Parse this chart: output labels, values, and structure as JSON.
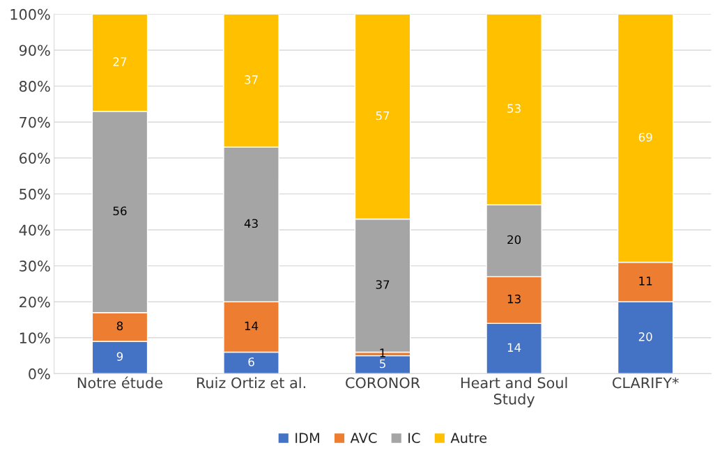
{
  "chart_data": {
    "type": "bar",
    "stacked": true,
    "categories": [
      "Notre étude",
      "Ruiz Ortiz et al.",
      "CORONOR",
      "Heart and Soul\nStudy",
      "CLARIFY*"
    ],
    "series": [
      {
        "name": "IDM",
        "color": "#4472c4",
        "values": [
          9,
          6,
          5,
          14,
          20
        ]
      },
      {
        "name": "AVC",
        "color": "#ed7d31",
        "values": [
          8,
          14,
          1,
          13,
          11
        ]
      },
      {
        "name": "IC",
        "color": "#a5a5a5",
        "values": [
          56,
          43,
          37,
          20,
          null
        ]
      },
      {
        "name": "Autre",
        "color": "#ffc000",
        "values": [
          27,
          37,
          57,
          53,
          69
        ]
      }
    ],
    "ylim": [
      0,
      100
    ],
    "yticks": [
      {
        "value": 0,
        "label": "0%"
      },
      {
        "value": 10,
        "label": "10%"
      },
      {
        "value": 20,
        "label": "20%"
      },
      {
        "value": 30,
        "label": "30%"
      },
      {
        "value": 40,
        "label": "40%"
      },
      {
        "value": 50,
        "label": "50%"
      },
      {
        "value": 60,
        "label": "60%"
      },
      {
        "value": 70,
        "label": "70%"
      },
      {
        "value": 80,
        "label": "80%"
      },
      {
        "value": 90,
        "label": "90%"
      },
      {
        "value": 100,
        "label": "100%"
      }
    ],
    "grid": "y",
    "legend": "bottom",
    "data_labels": true
  }
}
